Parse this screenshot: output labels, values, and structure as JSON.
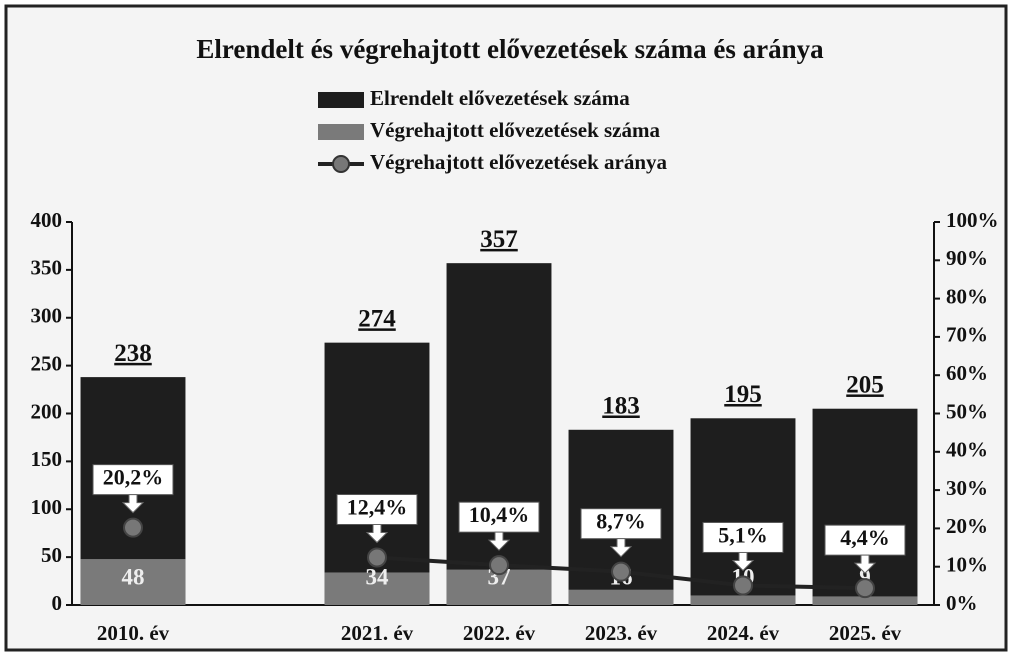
{
  "chart_data": {
    "type": "bar",
    "title": "Elrendelt és végrehajtott elővezetések száma és aránya",
    "categories": [
      "2010. év",
      null,
      "2021. év",
      "2022. év",
      "2023. év",
      "2024. év",
      "2025. év"
    ],
    "series": [
      {
        "name": "Elrendelt elővezetések száma",
        "color": "#1e1e1e",
        "values": [
          238,
          null,
          274,
          357,
          183,
          195,
          205
        ]
      },
      {
        "name": "Végrehajtott elővezetések száma",
        "color": "#7a7a7a",
        "values": [
          48,
          null,
          34,
          37,
          16,
          10,
          9
        ]
      },
      {
        "name": "Végrehajtott elővezetések aránya",
        "color": "#222222",
        "type": "line",
        "axis": "y2",
        "values": [
          20.2,
          null,
          12.4,
          10.4,
          8.7,
          5.1,
          4.4
        ],
        "value_labels": [
          "20,2%",
          null,
          "12,4%",
          "10,4%",
          "8,7%",
          "5,1%",
          "4,4%"
        ]
      }
    ],
    "ylim": [
      0,
      400
    ],
    "yticks": [
      0,
      50,
      100,
      150,
      200,
      250,
      300,
      350,
      400
    ],
    "y2lim": [
      0,
      100
    ],
    "y2ticks": [
      {
        "value": 0,
        "label": "0%"
      },
      {
        "value": 10,
        "label": "10%"
      },
      {
        "value": 20,
        "label": "20%"
      },
      {
        "value": 30,
        "label": "30%"
      },
      {
        "value": 40,
        "label": "40%"
      },
      {
        "value": 50,
        "label": "50%"
      },
      {
        "value": 60,
        "label": "60%"
      },
      {
        "value": 70,
        "label": "70%"
      },
      {
        "value": 80,
        "label": "80%"
      },
      {
        "value": 90,
        "label": "90%"
      },
      {
        "value": 100,
        "label": "100%"
      }
    ],
    "legend": "top"
  }
}
